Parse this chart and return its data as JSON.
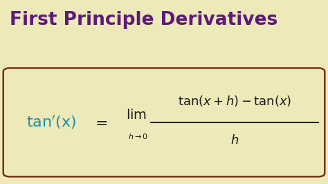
{
  "bg_color": "#ede9b8",
  "title": "First Principle Derivatives",
  "title_color": "#5c1a7a",
  "title_fontsize": 19,
  "box_edge_color": "#7a3010",
  "box_fill_color": "#ede9b8",
  "lhs_color": "#1a8faf",
  "formula_color": "#1a1a1a",
  "fig_width": 4.74,
  "fig_height": 2.66,
  "dpi": 100
}
